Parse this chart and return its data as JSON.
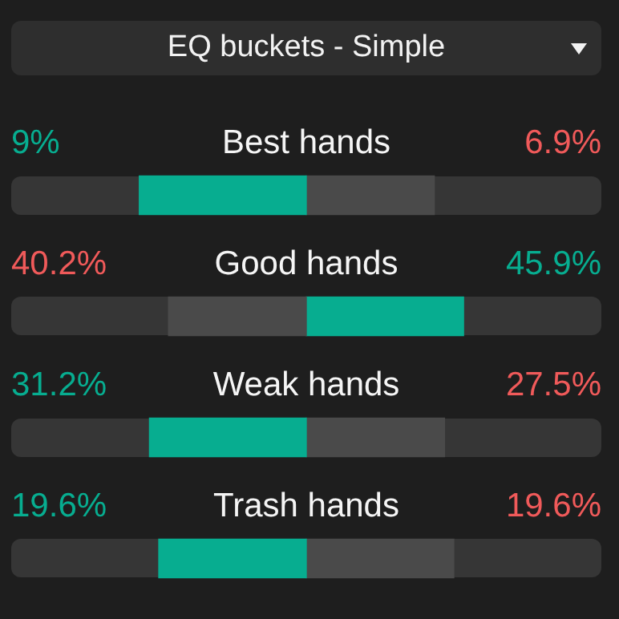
{
  "chart_data": {
    "type": "other",
    "title": "EQ buckets - Simple",
    "categories": [
      "Best hands",
      "Good hands",
      "Weak hands",
      "Trash hands"
    ],
    "series": [
      {
        "colors": [
          "#07ad90",
          "#4a4a4a",
          "#07ad90",
          "#07ad90"
        ],
        "values": [
          9,
          40.2,
          31.2,
          19.6
        ],
        "value_labels": [
          "9%",
          "40.2%",
          "31.2%",
          "19.6%"
        ]
      },
      {
        "colors": [
          "#4a4a4a",
          "#07ad90",
          "#4a4a4a",
          "#4a4a4a"
        ],
        "values": [
          6.9,
          45.9,
          27.5,
          19.6
        ],
        "value_labels": [
          "6.9%",
          "45.9%",
          "27.5%",
          "19.6%"
        ]
      }
    ]
  }
}
